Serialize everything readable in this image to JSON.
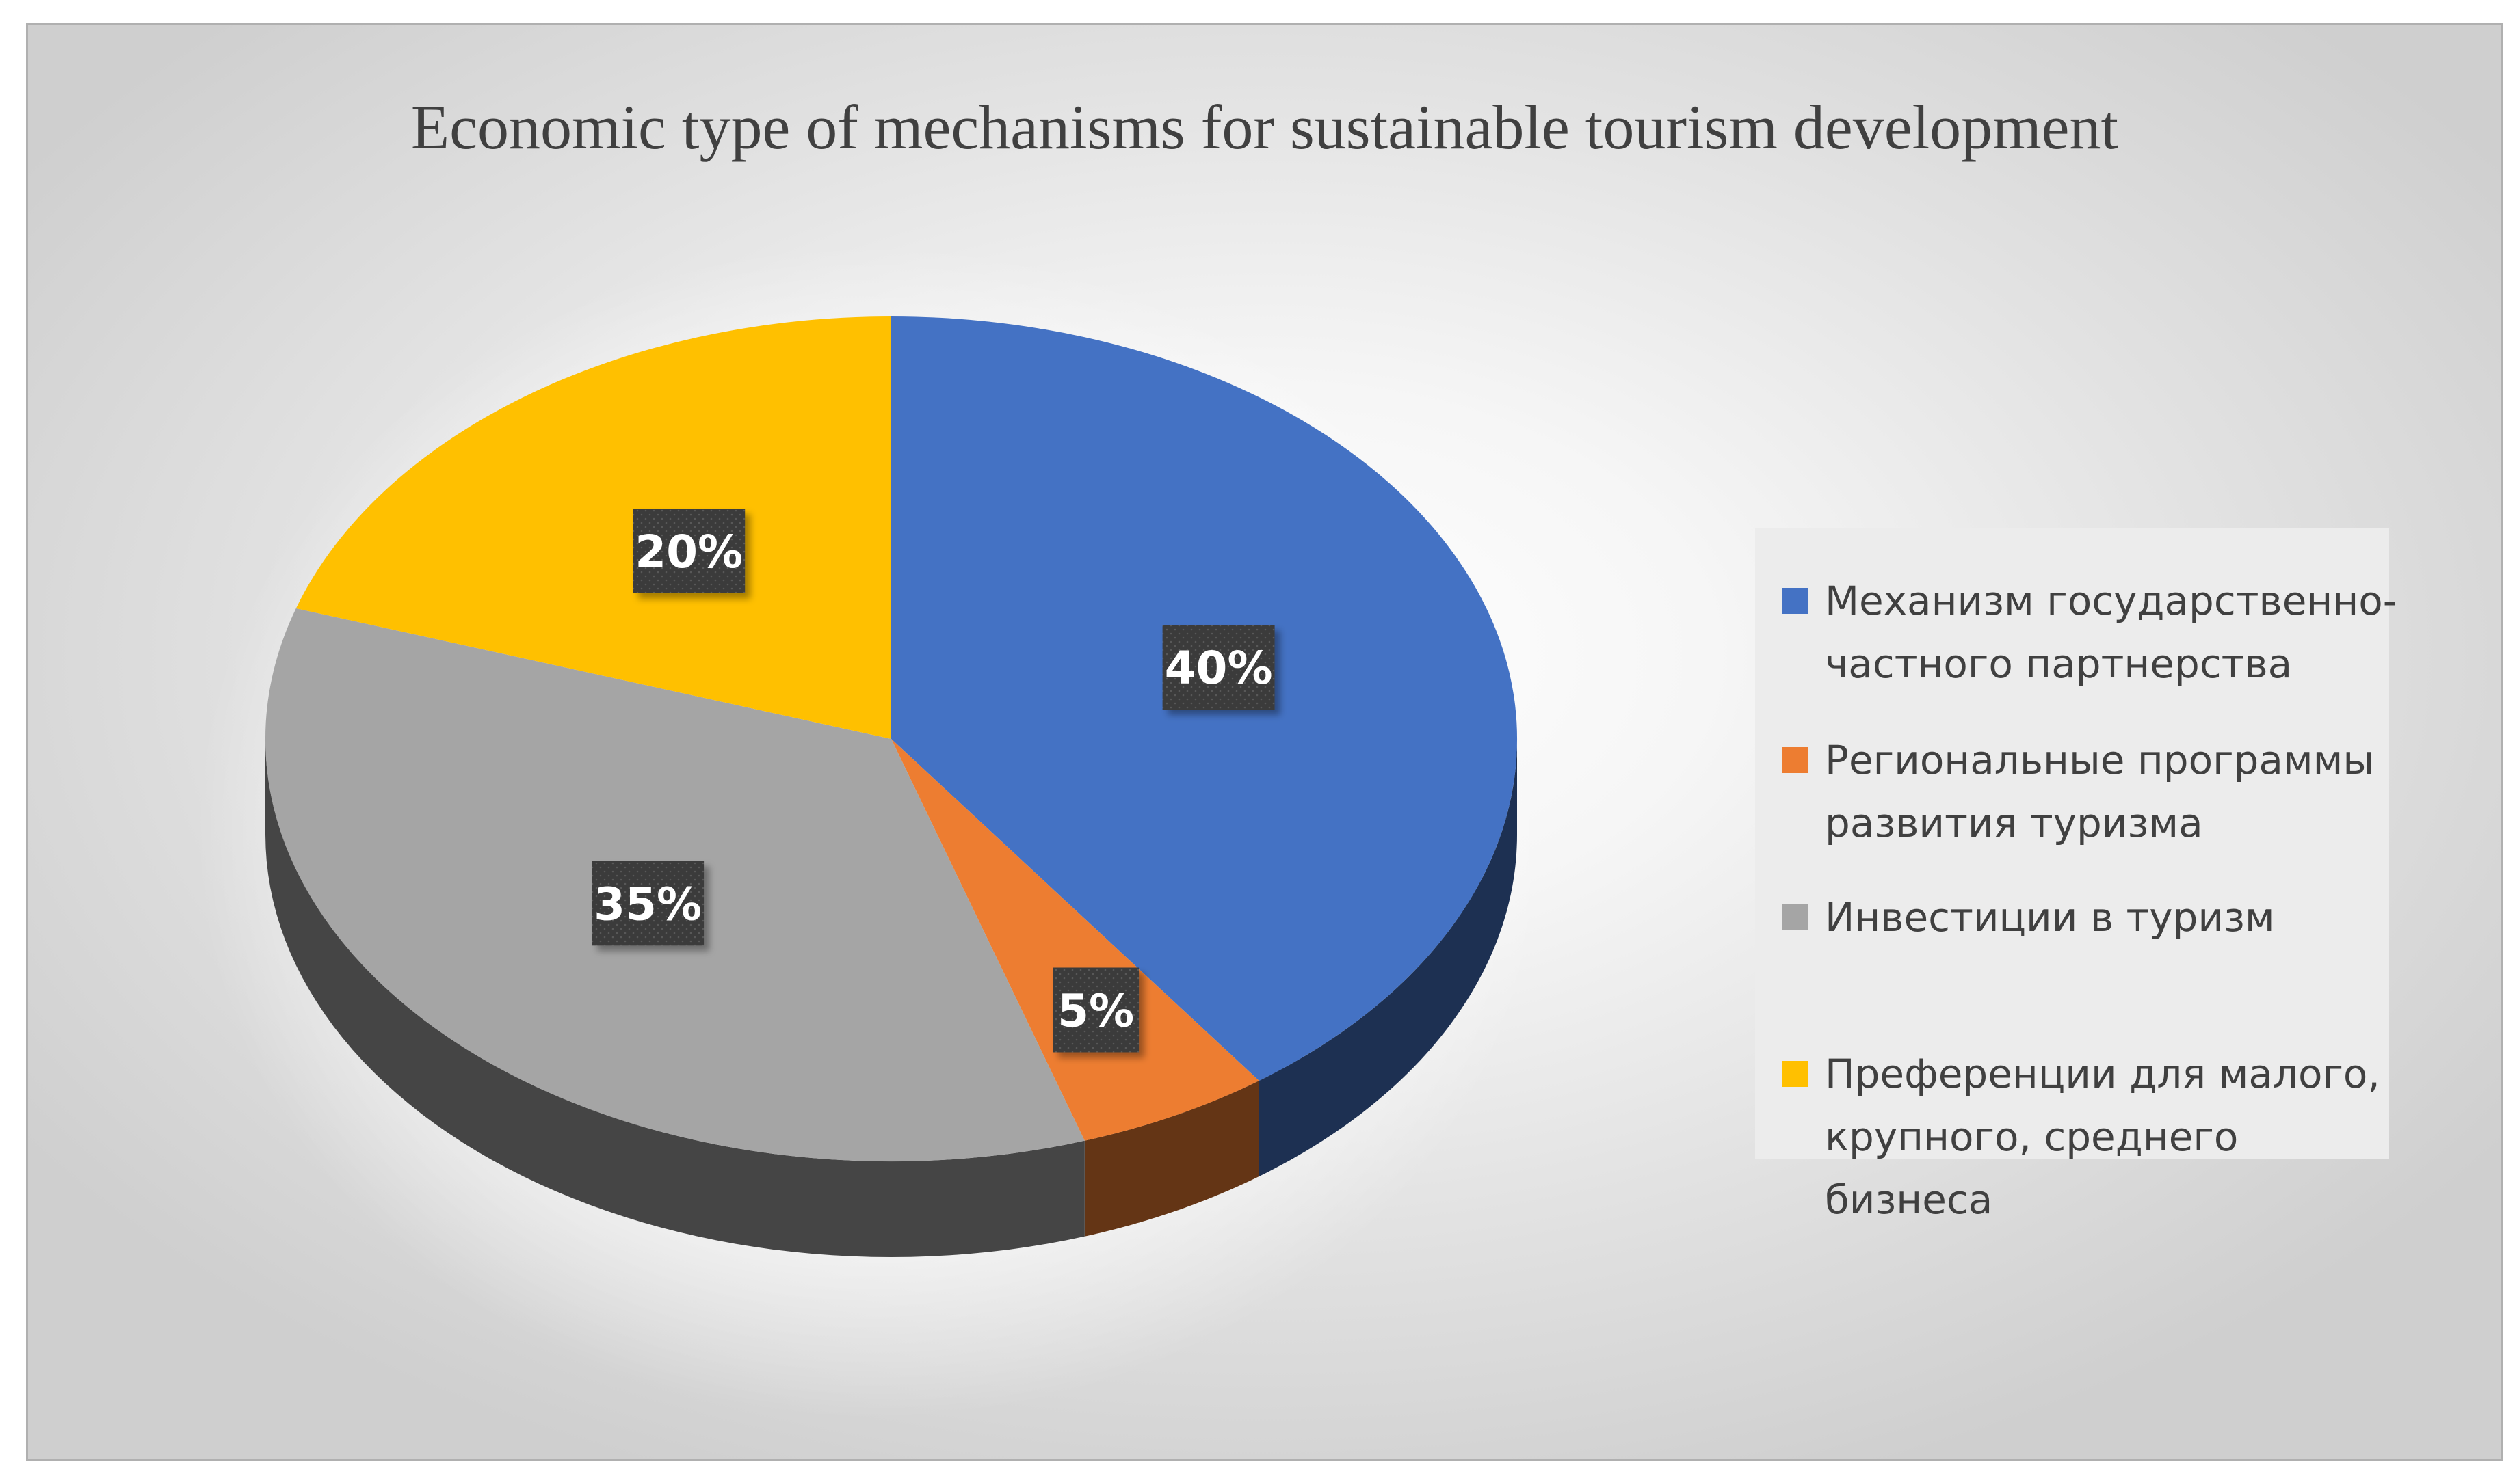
{
  "chart_data": {
    "type": "pie",
    "title": "Economic type of mechanisms for sustainable tourism development",
    "categories": [
      "Механизм государственно-частного партнерства",
      "Региональные программы развития туризма",
      "Инвестиции в туризм",
      "Преференции для малого, крупного, среднего бизнеса"
    ],
    "values": [
      40,
      5,
      35,
      20
    ],
    "data_labels": [
      "40%",
      "5%",
      "35%",
      "20%"
    ],
    "colors": [
      "#4472C4",
      "#ED7D31",
      "#A5A5A5",
      "#FFC000"
    ],
    "legend_position": "right",
    "style": "3d"
  },
  "legend": {
    "items": [
      {
        "line1": "Механизм государственно-",
        "line2": "частного партнерства",
        "color": "#4472C4"
      },
      {
        "line1": "Региональные программы",
        "line2": "развития туризма",
        "color": "#ED7D31"
      },
      {
        "line1": "Инвестиции в туризм",
        "line2": "",
        "color": "#A5A5A5"
      },
      {
        "line1": "Преференции для малого,",
        "line2": "крупного, среднего бизнеса",
        "color": "#FFC000"
      }
    ]
  }
}
